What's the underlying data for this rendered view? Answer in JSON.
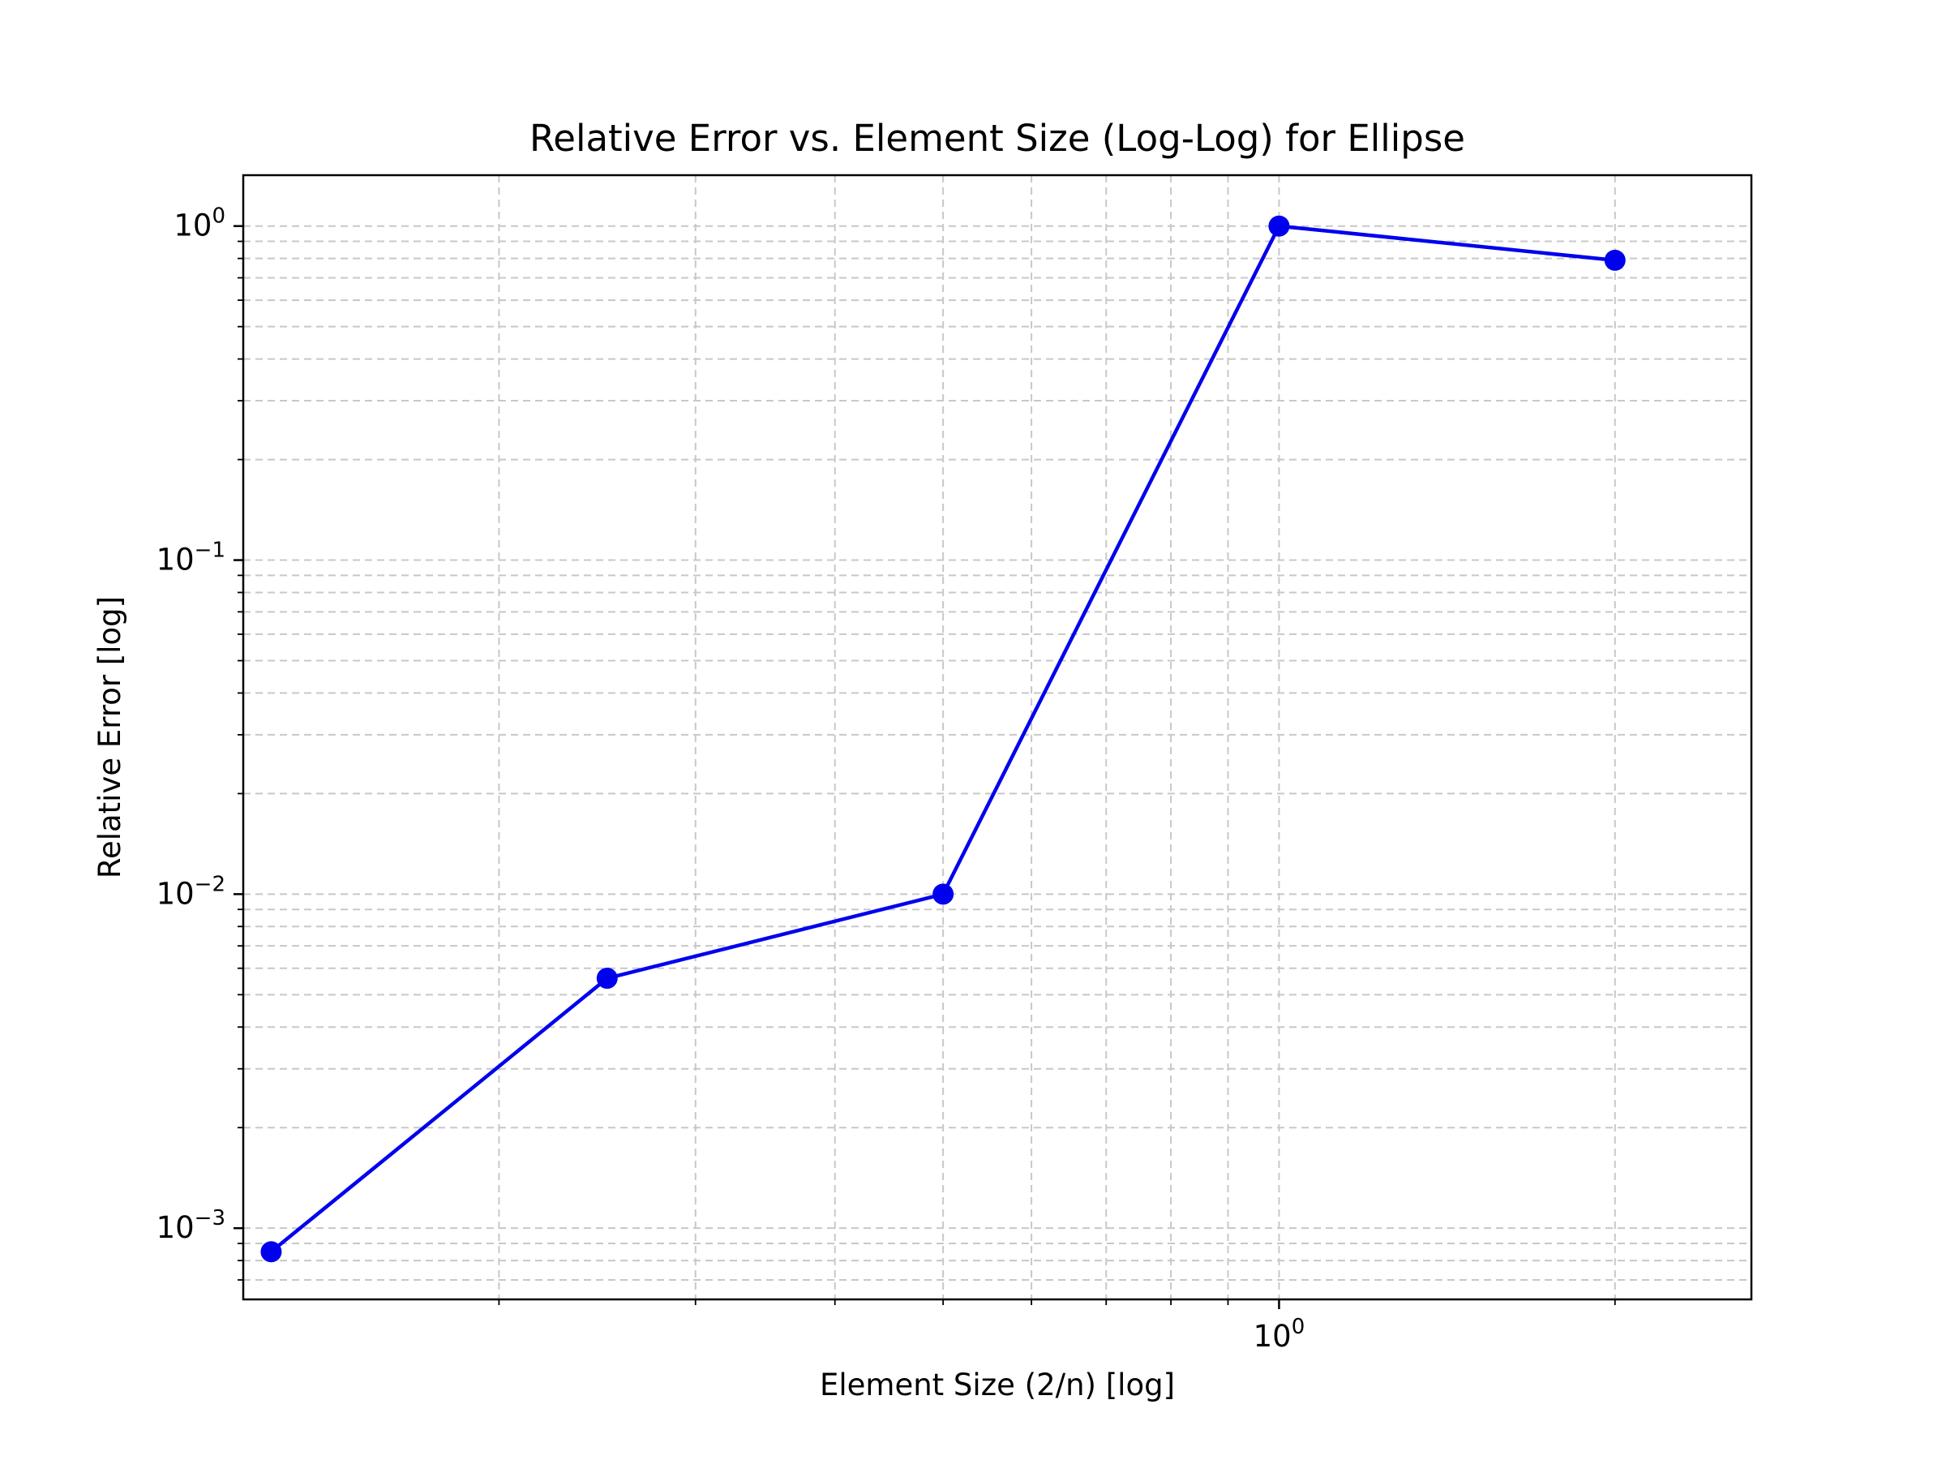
{
  "chart_data": {
    "type": "line",
    "title": "Relative Error vs. Element Size (Log-Log) for Ellipse",
    "xlabel": "Element Size (2/n) [log]",
    "ylabel": "Relative Error [log]",
    "xscale": "log",
    "yscale": "log",
    "xlim": [
      0.118,
      2.65
    ],
    "ylim": [
      0.000612,
      1.42
    ],
    "grid": true,
    "grid_style": "dashed, major and minor",
    "x_ticks": [
      {
        "value": 1,
        "base": "10",
        "exp": "0"
      }
    ],
    "y_ticks": [
      {
        "value": 0.001,
        "base": "10",
        "exp": "−3"
      },
      {
        "value": 0.01,
        "base": "10",
        "exp": "−2"
      },
      {
        "value": 0.1,
        "base": "10",
        "exp": "−1"
      },
      {
        "value": 1,
        "base": "10",
        "exp": "0"
      }
    ],
    "series": [
      {
        "color": "#0000ee",
        "marker": "circle",
        "x": [
          0.125,
          0.25,
          0.5,
          1.0,
          2.0
        ],
        "y": [
          0.00085,
          0.0056,
          0.01,
          1.0,
          0.79
        ]
      }
    ]
  }
}
